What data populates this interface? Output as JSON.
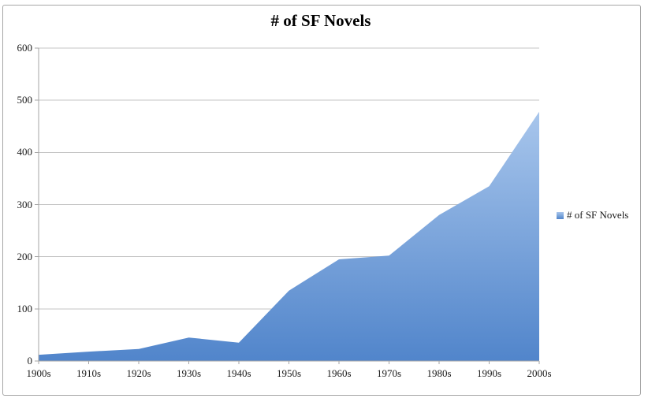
{
  "window": {
    "background": "#ffffff",
    "frame_border_color": "#a6a6a6"
  },
  "chart_data": {
    "type": "area",
    "title": "# of SF Novels",
    "legend_label": "# of SF Novels",
    "series": [
      {
        "name": "# of SF Novels",
        "values": [
          12,
          18,
          23,
          45,
          35,
          135,
          195,
          202,
          280,
          335,
          478
        ]
      }
    ],
    "categories": [
      "1900s",
      "1910s",
      "1920s",
      "1930s",
      "1940s",
      "1950s",
      "1960s",
      "1970s",
      "1980s",
      "1990s",
      "2000s"
    ],
    "yticks": [
      0,
      100,
      200,
      300,
      400,
      500,
      600
    ],
    "ylim": [
      0,
      600
    ],
    "xlabel": "",
    "ylabel": "",
    "grid": "horizontal",
    "legend_position": "right",
    "colors": {
      "area_gradient_top": "#a8c6ec",
      "area_gradient_bottom": "#5185cb",
      "gridline": "#c4c4c4",
      "axis": "#a6a6a6",
      "tick": "#a6a6a6",
      "label_text": "#1a1a1a",
      "title_text": "#000000"
    }
  }
}
